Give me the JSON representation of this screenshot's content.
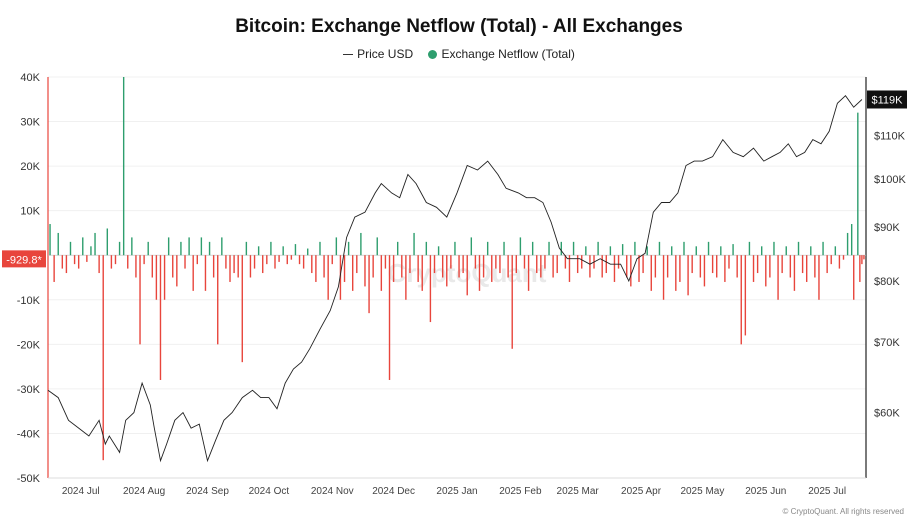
{
  "chart_data": {
    "type": "bar+line",
    "title": "Bitcoin: Exchange Netflow (Total) - All Exchanges",
    "legend": [
      {
        "label": "Price USD",
        "kind": "line",
        "color": "#333333"
      },
      {
        "label": "Exchange Netflow (Total)",
        "kind": "dot",
        "color": "#2e9e6e"
      }
    ],
    "colors": {
      "positive": "#2e9e6e",
      "negative": "#e8453c",
      "price": "#222222",
      "left_axis": "#e8453c"
    },
    "left_axis": {
      "ticks": [
        "40K",
        "30K",
        "20K",
        "10K",
        "-10K",
        "-20K",
        "-30K",
        "-40K",
        "-50K"
      ],
      "tick_values": [
        40000,
        30000,
        20000,
        10000,
        -10000,
        -20000,
        -30000,
        -40000,
        -50000
      ],
      "range": [
        -50000,
        40000
      ]
    },
    "right_axis": {
      "ticks": [
        "$110K",
        "$100K",
        "$90K",
        "$80K",
        "$70K",
        "$60K"
      ],
      "tick_values": [
        110000,
        100000,
        90000,
        80000,
        70000,
        60000
      ],
      "scale": "log",
      "range": [
        52000,
        125000
      ]
    },
    "current_netflow_label": "-929.8*",
    "current_price_label": "$119K",
    "x_labels": [
      "2024 Jul",
      "2024 Aug",
      "2024 Sep",
      "2024 Oct",
      "2024 Nov",
      "2024 Dec",
      "2025 Jan",
      "2025 Feb",
      "2025 Mar",
      "2025 Apr",
      "2025 May",
      "2025 Jun",
      "2025 Jul"
    ],
    "x_range_days": [
      0,
      400
    ],
    "x_label_days": [
      16,
      47,
      78,
      108,
      139,
      169,
      200,
      231,
      259,
      290,
      320,
      351,
      381
    ],
    "price_series": [
      [
        0,
        63000
      ],
      [
        5,
        62000
      ],
      [
        10,
        59000
      ],
      [
        15,
        58000
      ],
      [
        20,
        57000
      ],
      [
        25,
        59000
      ],
      [
        28,
        56000
      ],
      [
        30,
        57000
      ],
      [
        35,
        55000
      ],
      [
        38,
        59000
      ],
      [
        42,
        60000
      ],
      [
        46,
        64000
      ],
      [
        50,
        61000
      ],
      [
        52,
        58000
      ],
      [
        55,
        54000
      ],
      [
        58,
        56000
      ],
      [
        62,
        59000
      ],
      [
        66,
        60000
      ],
      [
        70,
        58000
      ],
      [
        74,
        58500
      ],
      [
        78,
        54000
      ],
      [
        82,
        56500
      ],
      [
        86,
        59000
      ],
      [
        90,
        60000
      ],
      [
        95,
        62000
      ],
      [
        100,
        63000
      ],
      [
        104,
        62000
      ],
      [
        108,
        62000
      ],
      [
        112,
        60500
      ],
      [
        116,
        64000
      ],
      [
        120,
        66000
      ],
      [
        124,
        67000
      ],
      [
        128,
        69000
      ],
      [
        133,
        72000
      ],
      [
        138,
        75000
      ],
      [
        142,
        79000
      ],
      [
        146,
        88000
      ],
      [
        150,
        92000
      ],
      [
        155,
        93000
      ],
      [
        160,
        97000
      ],
      [
        163,
        99000
      ],
      [
        168,
        97000
      ],
      [
        172,
        96000
      ],
      [
        176,
        101000
      ],
      [
        180,
        99000
      ],
      [
        185,
        95000
      ],
      [
        190,
        94000
      ],
      [
        195,
        92000
      ],
      [
        200,
        97000
      ],
      [
        205,
        103000
      ],
      [
        210,
        102000
      ],
      [
        215,
        104000
      ],
      [
        220,
        101000
      ],
      [
        224,
        98000
      ],
      [
        230,
        97000
      ],
      [
        234,
        96000
      ],
      [
        238,
        96000
      ],
      [
        242,
        95000
      ],
      [
        246,
        91000
      ],
      [
        250,
        86000
      ],
      [
        254,
        84000
      ],
      [
        260,
        84000
      ],
      [
        265,
        83000
      ],
      [
        270,
        84000
      ],
      [
        275,
        83000
      ],
      [
        280,
        83000
      ],
      [
        284,
        80000
      ],
      [
        288,
        84000
      ],
      [
        292,
        85000
      ],
      [
        296,
        93000
      ],
      [
        300,
        95000
      ],
      [
        304,
        95000
      ],
      [
        308,
        97000
      ],
      [
        312,
        103000
      ],
      [
        316,
        104000
      ],
      [
        320,
        104000
      ],
      [
        325,
        105000
      ],
      [
        330,
        109000
      ],
      [
        335,
        106000
      ],
      [
        340,
        105000
      ],
      [
        345,
        107000
      ],
      [
        350,
        104000
      ],
      [
        354,
        105000
      ],
      [
        358,
        106000
      ],
      [
        362,
        108000
      ],
      [
        366,
        105000
      ],
      [
        370,
        106000
      ],
      [
        374,
        109000
      ],
      [
        378,
        108000
      ],
      [
        382,
        111000
      ],
      [
        386,
        118000
      ],
      [
        390,
        120000
      ],
      [
        394,
        117000
      ],
      [
        398,
        119000
      ]
    ],
    "netflow_series": [
      [
        1,
        7000
      ],
      [
        3,
        -6000
      ],
      [
        5,
        5000
      ],
      [
        7,
        -3000
      ],
      [
        9,
        -4000
      ],
      [
        11,
        3000
      ],
      [
        13,
        -2000
      ],
      [
        15,
        -3000
      ],
      [
        17,
        4000
      ],
      [
        19,
        -1500
      ],
      [
        21,
        2000
      ],
      [
        23,
        5000
      ],
      [
        25,
        -4000
      ],
      [
        27,
        -46000
      ],
      [
        29,
        6000
      ],
      [
        31,
        -3000
      ],
      [
        33,
        -2000
      ],
      [
        35,
        3000
      ],
      [
        37,
        40000
      ],
      [
        39,
        -3000
      ],
      [
        41,
        4000
      ],
      [
        43,
        -5000
      ],
      [
        45,
        -20000
      ],
      [
        47,
        -2000
      ],
      [
        49,
        3000
      ],
      [
        51,
        -5000
      ],
      [
        53,
        -10000
      ],
      [
        55,
        -28000
      ],
      [
        57,
        -10000
      ],
      [
        59,
        4000
      ],
      [
        61,
        -5000
      ],
      [
        63,
        -7000
      ],
      [
        65,
        3000
      ],
      [
        67,
        -3000
      ],
      [
        69,
        4000
      ],
      [
        71,
        -8000
      ],
      [
        73,
        -2000
      ],
      [
        75,
        4000
      ],
      [
        77,
        -8000
      ],
      [
        79,
        3000
      ],
      [
        81,
        -5000
      ],
      [
        83,
        -20000
      ],
      [
        85,
        4000
      ],
      [
        87,
        -3000
      ],
      [
        89,
        -6000
      ],
      [
        91,
        -4000
      ],
      [
        93,
        -5000
      ],
      [
        95,
        -24000
      ],
      [
        97,
        3000
      ],
      [
        99,
        -5000
      ],
      [
        101,
        -3000
      ],
      [
        103,
        2000
      ],
      [
        105,
        -4000
      ],
      [
        107,
        -2000
      ],
      [
        109,
        3000
      ],
      [
        111,
        -3000
      ],
      [
        113,
        -1500
      ],
      [
        115,
        2000
      ],
      [
        117,
        -2000
      ],
      [
        119,
        -1000
      ],
      [
        121,
        2500
      ],
      [
        123,
        -2000
      ],
      [
        125,
        -3000
      ],
      [
        127,
        1500
      ],
      [
        129,
        -4000
      ],
      [
        131,
        -6000
      ],
      [
        133,
        3000
      ],
      [
        135,
        -5000
      ],
      [
        137,
        -10000
      ],
      [
        139,
        -2000
      ],
      [
        141,
        4000
      ],
      [
        143,
        -10000
      ],
      [
        145,
        -6000
      ],
      [
        147,
        3000
      ],
      [
        149,
        -8000
      ],
      [
        151,
        -4000
      ],
      [
        153,
        5000
      ],
      [
        155,
        -7000
      ],
      [
        157,
        -13000
      ],
      [
        159,
        -5000
      ],
      [
        161,
        4000
      ],
      [
        163,
        -8000
      ],
      [
        165,
        -3000
      ],
      [
        167,
        -28000
      ],
      [
        169,
        -6000
      ],
      [
        171,
        3000
      ],
      [
        173,
        -5000
      ],
      [
        175,
        -10000
      ],
      [
        177,
        -4000
      ],
      [
        179,
        5000
      ],
      [
        181,
        -6000
      ],
      [
        183,
        -8000
      ],
      [
        185,
        3000
      ],
      [
        187,
        -15000
      ],
      [
        189,
        -4000
      ],
      [
        191,
        2000
      ],
      [
        193,
        -5000
      ],
      [
        195,
        -7000
      ],
      [
        197,
        -3000
      ],
      [
        199,
        3000
      ],
      [
        201,
        -5000
      ],
      [
        203,
        -4000
      ],
      [
        205,
        -9000
      ],
      [
        207,
        4000
      ],
      [
        209,
        -3000
      ],
      [
        211,
        -8000
      ],
      [
        213,
        -5000
      ],
      [
        215,
        3000
      ],
      [
        217,
        -6000
      ],
      [
        219,
        -3000
      ],
      [
        221,
        -4000
      ],
      [
        223,
        3000
      ],
      [
        225,
        -5000
      ],
      [
        227,
        -21000
      ],
      [
        229,
        -4000
      ],
      [
        231,
        4000
      ],
      [
        233,
        -3000
      ],
      [
        235,
        -8000
      ],
      [
        237,
        3000
      ],
      [
        239,
        -4000
      ],
      [
        241,
        -5000
      ],
      [
        243,
        -3000
      ],
      [
        245,
        3000
      ],
      [
        247,
        -5000
      ],
      [
        249,
        -4000
      ],
      [
        251,
        3000
      ],
      [
        253,
        -3000
      ],
      [
        255,
        -6000
      ],
      [
        257,
        3000
      ],
      [
        259,
        -4000
      ],
      [
        261,
        -3000
      ],
      [
        263,
        2000
      ],
      [
        265,
        -5000
      ],
      [
        267,
        -3000
      ],
      [
        269,
        3000
      ],
      [
        271,
        -5000
      ],
      [
        273,
        -4000
      ],
      [
        275,
        2000
      ],
      [
        277,
        -6000
      ],
      [
        279,
        -3000
      ],
      [
        281,
        2500
      ],
      [
        283,
        -5000
      ],
      [
        285,
        -7000
      ],
      [
        287,
        3000
      ],
      [
        289,
        -6000
      ],
      [
        291,
        -4000
      ],
      [
        293,
        2000
      ],
      [
        295,
        -8000
      ],
      [
        297,
        -5000
      ],
      [
        299,
        3000
      ],
      [
        301,
        -10000
      ],
      [
        303,
        -5000
      ],
      [
        305,
        2000
      ],
      [
        307,
        -8000
      ],
      [
        309,
        -6000
      ],
      [
        311,
        3000
      ],
      [
        313,
        -9000
      ],
      [
        315,
        -4000
      ],
      [
        317,
        2000
      ],
      [
        319,
        -5000
      ],
      [
        321,
        -7000
      ],
      [
        323,
        3000
      ],
      [
        325,
        -4000
      ],
      [
        327,
        -5000
      ],
      [
        329,
        2000
      ],
      [
        331,
        -6000
      ],
      [
        333,
        -3000
      ],
      [
        335,
        2500
      ],
      [
        337,
        -5000
      ],
      [
        339,
        -20000
      ],
      [
        341,
        -18000
      ],
      [
        343,
        3000
      ],
      [
        345,
        -6000
      ],
      [
        347,
        -4000
      ],
      [
        349,
        2000
      ],
      [
        351,
        -7000
      ],
      [
        353,
        -5000
      ],
      [
        355,
        3000
      ],
      [
        357,
        -10000
      ],
      [
        359,
        -4000
      ],
      [
        361,
        2000
      ],
      [
        363,
        -5000
      ],
      [
        365,
        -8000
      ],
      [
        367,
        3000
      ],
      [
        369,
        -4000
      ],
      [
        371,
        -6000
      ],
      [
        373,
        2000
      ],
      [
        375,
        -5000
      ],
      [
        377,
        -10000
      ],
      [
        379,
        3000
      ],
      [
        381,
        -4000
      ],
      [
        383,
        -2000
      ],
      [
        385,
        2000
      ],
      [
        387,
        -3000
      ],
      [
        389,
        -1000
      ],
      [
        391,
        5000
      ],
      [
        393,
        7000
      ],
      [
        394,
        -10000
      ],
      [
        396,
        32000
      ],
      [
        397,
        -6000
      ],
      [
        398,
        -2000
      ],
      [
        399,
        -929.8
      ]
    ]
  },
  "footer": {
    "text": "© CryptoQuant. All rights reserved"
  }
}
